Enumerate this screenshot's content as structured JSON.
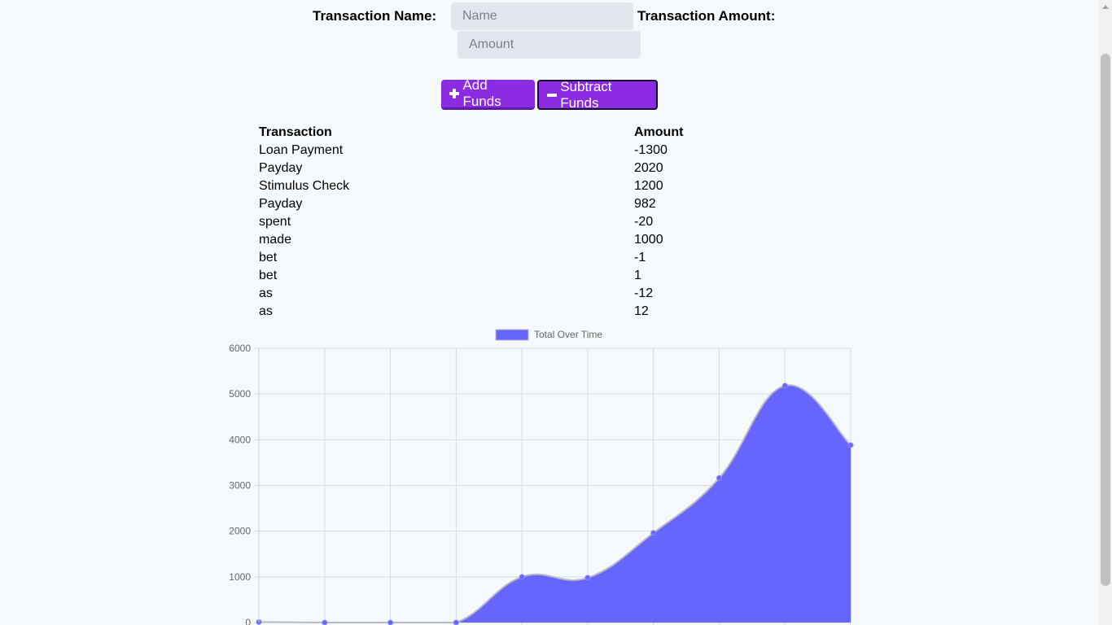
{
  "form": {
    "name_label": "Transaction Name:",
    "name_placeholder": "Name",
    "name_value": "",
    "amount_label": "Transaction Amount:",
    "amount_placeholder": "Amount",
    "amount_value": ""
  },
  "buttons": {
    "add_label": "Add Funds",
    "add_icon": "plus-icon",
    "subtract_label": "Subtract Funds",
    "subtract_icon": "minus-icon",
    "color": "#8b2be2"
  },
  "table": {
    "headers": [
      "Transaction",
      "Amount"
    ],
    "rows": [
      {
        "name": "Loan Payment",
        "amount": "-1300"
      },
      {
        "name": "Payday",
        "amount": "2020"
      },
      {
        "name": "Stimulus Check",
        "amount": "1200"
      },
      {
        "name": "Payday",
        "amount": "982"
      },
      {
        "name": "spent",
        "amount": "-20"
      },
      {
        "name": "made",
        "amount": "1000"
      },
      {
        "name": "bet",
        "amount": "-1"
      },
      {
        "name": "bet",
        "amount": "1"
      },
      {
        "name": "as",
        "amount": "-12"
      },
      {
        "name": "as",
        "amount": "12"
      }
    ]
  },
  "chart_data": {
    "type": "area",
    "title": "",
    "xlabel": "",
    "ylabel": "",
    "ylim": [
      0,
      6000
    ],
    "yticks": [
      0,
      1000,
      2000,
      3000,
      4000,
      5000,
      6000
    ],
    "grid": true,
    "legend_position": "top",
    "series": [
      {
        "name": "Total Over Time",
        "color": "#6666ff",
        "values": [
          12,
          0,
          1,
          0,
          1000,
          980,
          1962,
          3162,
          5182,
          3882
        ]
      }
    ]
  }
}
